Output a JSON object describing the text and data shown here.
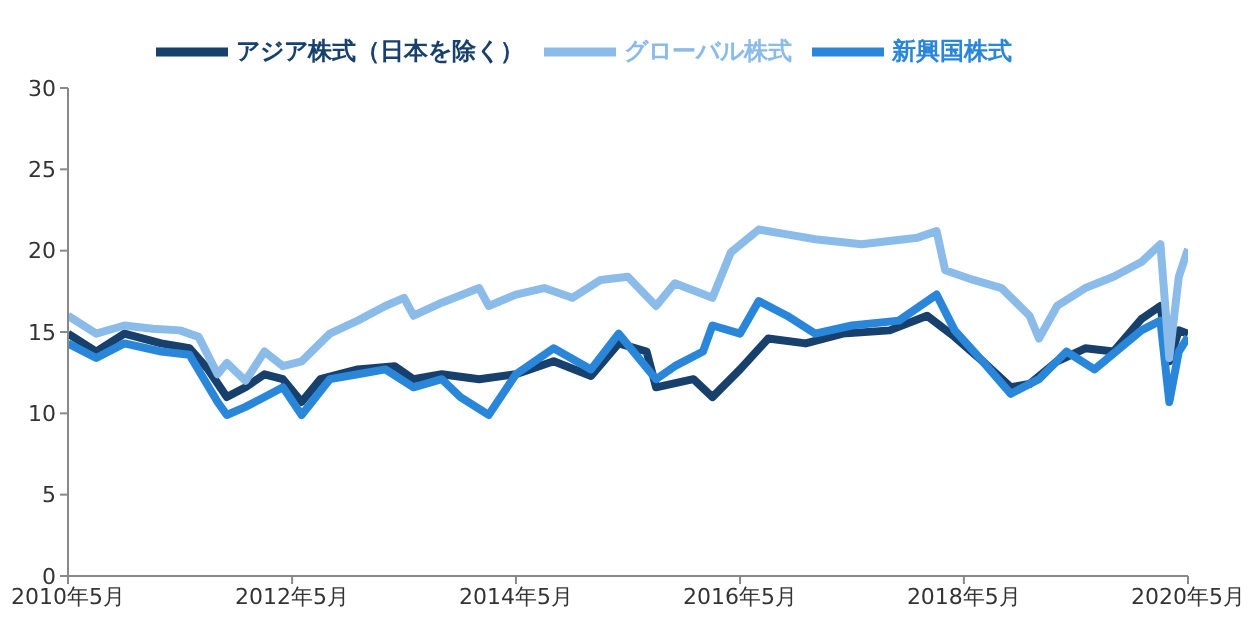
{
  "chart_data": {
    "type": "line",
    "legend": "top",
    "grid": false,
    "marker": "none",
    "line_style": "solid",
    "ylim": [
      0,
      30
    ],
    "yticks": [
      0,
      5,
      10,
      15,
      20,
      25,
      30
    ],
    "xlim": [
      "2010-05",
      "2020-05"
    ],
    "xticks": [
      {
        "value": "2010-05",
        "label": "2010年5月"
      },
      {
        "value": "2012-05",
        "label": "2012年5月"
      },
      {
        "value": "2014-05",
        "label": "2014年5月"
      },
      {
        "value": "2016-05",
        "label": "2016年5月"
      },
      {
        "value": "2018-05",
        "label": "2018年5月"
      },
      {
        "value": "2020-05",
        "label": "2020年5月"
      }
    ],
    "series": [
      {
        "name": "アジア株式（日本を除く）",
        "color": "#17406d",
        "x": [
          "2010-05",
          "2010-08",
          "2010-11",
          "2011-03",
          "2011-06",
          "2011-08",
          "2011-10",
          "2011-12",
          "2012-02",
          "2012-04",
          "2012-06",
          "2012-08",
          "2012-12",
          "2013-04",
          "2013-06",
          "2013-09",
          "2014-01",
          "2014-05",
          "2014-09",
          "2015-01",
          "2015-04",
          "2015-07",
          "2015-08",
          "2015-12",
          "2016-02",
          "2016-05",
          "2016-08",
          "2016-12",
          "2017-04",
          "2017-09",
          "2018-01",
          "2018-04",
          "2018-07",
          "2018-10",
          "2018-12",
          "2019-03",
          "2019-06",
          "2019-09",
          "2019-12",
          "2020-02",
          "2020-03",
          "2020-04",
          "2020-05"
        ],
        "values": [
          14.9,
          13.8,
          14.9,
          14.3,
          14,
          12.7,
          11,
          11.6,
          12.4,
          12.1,
          10.7,
          12.1,
          12.7,
          12.9,
          12.1,
          12.4,
          12.1,
          12.4,
          13.2,
          12.3,
          14.3,
          13.8,
          11.6,
          12.1,
          11,
          12.7,
          14.6,
          14.3,
          14.9,
          15.1,
          16,
          14.7,
          13.2,
          11.6,
          11.8,
          13.2,
          14,
          13.8,
          15.8,
          16.6,
          13.2,
          15.1,
          14.9
        ]
      },
      {
        "name": "新興国株式",
        "color": "#2a86d8",
        "x": [
          "2010-05",
          "2010-08",
          "2010-11",
          "2011-03",
          "2011-06",
          "2011-09",
          "2011-10",
          "2011-12",
          "2012-02",
          "2012-04",
          "2012-06",
          "2012-09",
          "2012-12",
          "2013-03",
          "2013-06",
          "2013-09",
          "2013-11",
          "2014-02",
          "2014-05",
          "2014-09",
          "2015-01",
          "2015-04",
          "2015-08",
          "2015-10",
          "2016-01",
          "2016-02",
          "2016-05",
          "2016-07",
          "2016-10",
          "2017-01",
          "2017-05",
          "2017-10",
          "2018-02",
          "2018-04",
          "2018-07",
          "2018-10",
          "2019-01",
          "2019-04",
          "2019-07",
          "2019-12",
          "2020-02",
          "2020-03",
          "2020-04",
          "2020-05"
        ],
        "values": [
          14.3,
          13.4,
          14.3,
          13.8,
          13.6,
          10.7,
          9.9,
          10.4,
          11,
          11.6,
          9.9,
          12.1,
          12.4,
          12.7,
          11.6,
          12.1,
          11,
          9.9,
          12.4,
          14,
          12.7,
          14.9,
          12.1,
          12.9,
          13.8,
          15.4,
          14.9,
          16.9,
          16,
          14.9,
          15.4,
          15.7,
          17.3,
          15.1,
          13.2,
          11.2,
          12.1,
          13.8,
          12.7,
          15.1,
          15.7,
          10.7,
          13.8,
          14.7
        ]
      },
      {
        "name": "グローバル株式",
        "color": "#8bbbe8",
        "x": [
          "2010-05",
          "2010-08",
          "2010-11",
          "2011-02",
          "2011-05",
          "2011-07",
          "2011-09",
          "2011-10",
          "2011-12",
          "2012-02",
          "2012-04",
          "2012-06",
          "2012-09",
          "2012-12",
          "2013-03",
          "2013-05",
          "2013-06",
          "2013-09",
          "2014-01",
          "2014-02",
          "2014-05",
          "2014-08",
          "2014-11",
          "2015-02",
          "2015-05",
          "2015-08",
          "2015-10",
          "2016-02",
          "2016-04",
          "2016-07",
          "2016-10",
          "2017-01",
          "2017-06",
          "2017-12",
          "2018-02",
          "2018-03",
          "2018-06",
          "2018-09",
          "2018-12",
          "2019-01",
          "2019-03",
          "2019-06",
          "2019-09",
          "2019-12",
          "2020-02",
          "2020-03",
          "2020-04",
          "2020-05"
        ],
        "values": [
          16,
          14.9,
          15.4,
          15.2,
          15.1,
          14.7,
          12.4,
          13.1,
          12,
          13.8,
          12.9,
          13.2,
          14.9,
          15.7,
          16.6,
          17.1,
          16,
          16.8,
          17.7,
          16.6,
          17.3,
          17.7,
          17.1,
          18.2,
          18.4,
          16.6,
          18,
          17.1,
          19.9,
          21.3,
          21,
          20.7,
          20.4,
          20.8,
          21.2,
          18.8,
          18.2,
          17.7,
          16,
          14.6,
          16.6,
          17.7,
          18.4,
          19.3,
          20.4,
          13.4,
          18.4,
          20.1
        ]
      }
    ]
  }
}
